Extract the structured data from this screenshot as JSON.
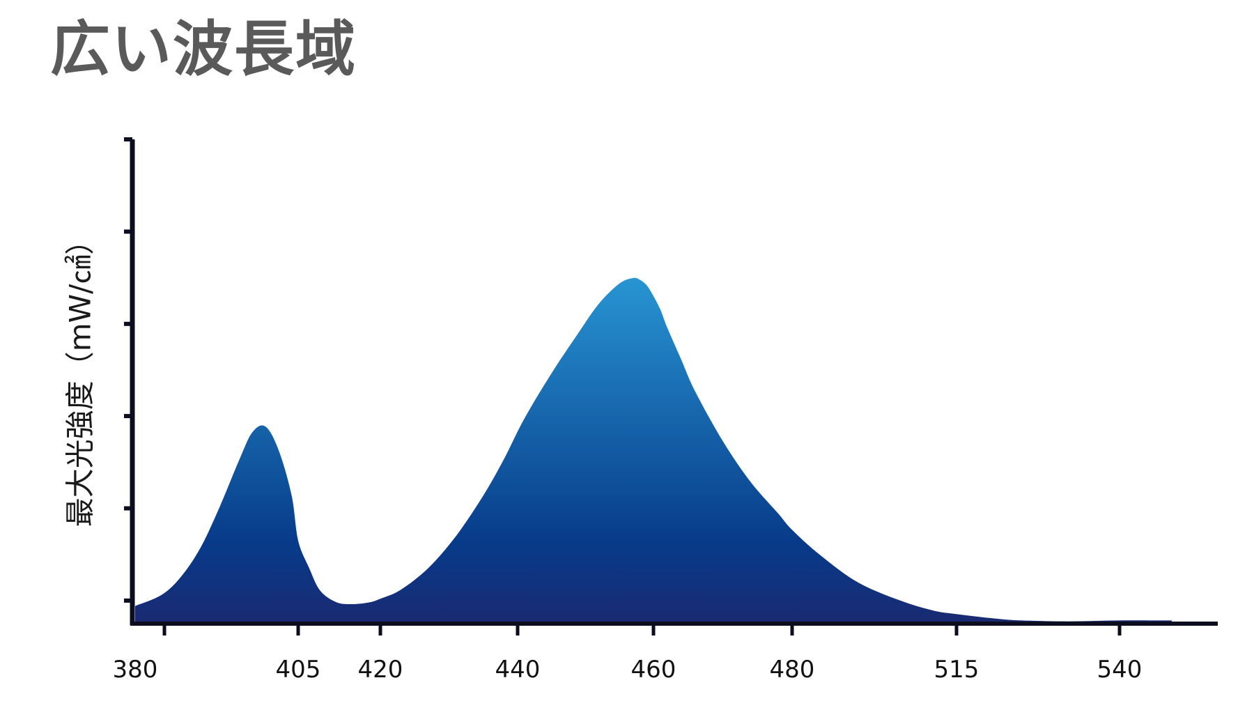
{
  "chart_data": {
    "type": "area",
    "title": "広い波長域",
    "xlabel": "",
    "ylabel": "最大光強度（mW/㎠）",
    "x_tick_labels": [
      "380",
      "405",
      "420",
      "440",
      "460",
      "480",
      "515",
      "540"
    ],
    "y_tick_count": 6,
    "y_tick_labels": [],
    "ylim": [
      0,
      5
    ],
    "grid": false,
    "legend": "none",
    "fill_gradient": {
      "top": "#2a9ad6",
      "mid": "#073b8a",
      "bottom": "#1a2a72"
    },
    "axis_color": "#0d0d20",
    "series": [
      {
        "x": [
          "380",
          "384",
          "387",
          "390",
          "393",
          "396",
          "398",
          "400",
          "402",
          "404",
          "405",
          "407",
          "409",
          "412",
          "415",
          "418",
          "420",
          "423",
          "427",
          "431",
          "435",
          "438",
          "441",
          "445",
          "449",
          "452",
          "455",
          "457",
          "458",
          "459",
          "460",
          "461",
          "462",
          "464",
          "466",
          "470",
          "474",
          "478",
          "480",
          "486",
          "494",
          "503",
          "510",
          "515",
          "521",
          "525",
          "532",
          "540",
          "548"
        ],
        "values": [
          0.18,
          0.3,
          0.5,
          0.82,
          1.28,
          1.8,
          2.1,
          2.16,
          1.9,
          1.4,
          0.9,
          0.6,
          0.35,
          0.22,
          0.2,
          0.22,
          0.26,
          0.36,
          0.6,
          0.95,
          1.4,
          1.8,
          2.25,
          2.75,
          3.2,
          3.52,
          3.74,
          3.8,
          3.78,
          3.72,
          3.6,
          3.45,
          3.25,
          2.9,
          2.55,
          2.0,
          1.55,
          1.2,
          1.02,
          0.74,
          0.44,
          0.24,
          0.13,
          0.09,
          0.04,
          0.02,
          0.01,
          0.02,
          0.02
        ]
      }
    ]
  }
}
